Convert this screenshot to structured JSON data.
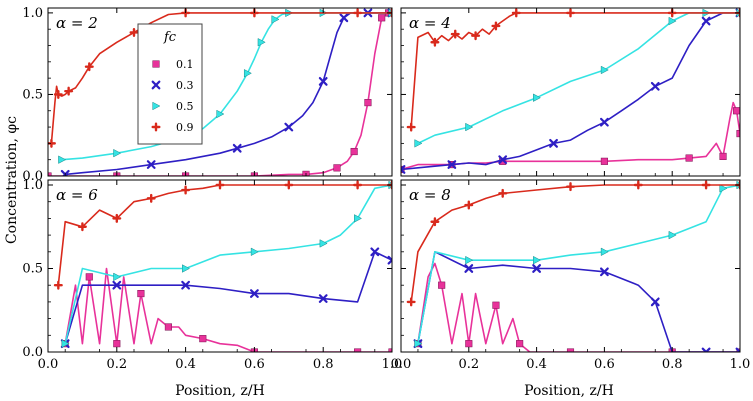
{
  "chart_data": {
    "type": "line",
    "figure": {
      "ylabel": "Concentration, φc",
      "xlabel": "Position, z/H",
      "x_ticks": [
        "0.0",
        "0.2",
        "0.4",
        "0.6",
        "0.8",
        "1.0"
      ],
      "y_ticks": [
        "0.0",
        "0.5",
        "1.0"
      ],
      "xlim": [
        0,
        1
      ],
      "ylim": [
        0,
        1.03
      ],
      "legend": {
        "title": "fc",
        "placement": "upper-left of top-left panel",
        "entries": [
          "0.1",
          "0.3",
          "0.5",
          "0.9"
        ]
      }
    },
    "series_styles": [
      {
        "key": "0.1",
        "color": "#e8329a",
        "marker": "square"
      },
      {
        "key": "0.3",
        "color": "#2e1fc4",
        "marker": "x"
      },
      {
        "key": "0.5",
        "color": "#35e3e3",
        "marker": "triangle-right"
      },
      {
        "key": "0.9",
        "color": "#d92a1c",
        "marker": "plus"
      }
    ],
    "panels": [
      {
        "label": "α = 2",
        "series": [
          {
            "key": "0.1",
            "x": [
              0.0,
              0.1,
              0.2,
              0.3,
              0.4,
              0.5,
              0.6,
              0.7,
              0.75,
              0.8,
              0.84,
              0.87,
              0.89,
              0.91,
              0.93,
              0.95,
              0.97,
              0.99
            ],
            "y": [
              0.0,
              0.0,
              0.0,
              0.0,
              0.0,
              0.0,
              0.0,
              0.01,
              0.01,
              0.02,
              0.05,
              0.09,
              0.15,
              0.25,
              0.45,
              0.75,
              0.97,
              1.0
            ]
          },
          {
            "key": "0.3",
            "x": [
              0.05,
              0.1,
              0.2,
              0.3,
              0.4,
              0.5,
              0.55,
              0.6,
              0.65,
              0.7,
              0.74,
              0.77,
              0.8,
              0.82,
              0.84,
              0.86,
              0.88,
              0.9,
              0.93,
              0.97,
              1.0
            ],
            "y": [
              0.01,
              0.02,
              0.04,
              0.07,
              0.1,
              0.14,
              0.17,
              0.2,
              0.24,
              0.3,
              0.37,
              0.45,
              0.58,
              0.73,
              0.88,
              0.97,
              1.0,
              1.0,
              1.0,
              1.0,
              1.0
            ]
          },
          {
            "key": "0.5",
            "x": [
              0.04,
              0.1,
              0.2,
              0.3,
              0.4,
              0.45,
              0.5,
              0.55,
              0.58,
              0.6,
              0.62,
              0.64,
              0.66,
              0.68,
              0.7,
              0.75,
              0.8,
              0.9,
              1.0
            ],
            "y": [
              0.1,
              0.11,
              0.14,
              0.18,
              0.24,
              0.29,
              0.38,
              0.52,
              0.63,
              0.72,
              0.82,
              0.9,
              0.96,
              0.99,
              1.0,
              1.0,
              1.0,
              1.0,
              1.0
            ]
          },
          {
            "key": "0.9",
            "x": [
              0.01,
              0.02,
              0.025,
              0.03,
              0.04,
              0.05,
              0.06,
              0.08,
              0.1,
              0.12,
              0.15,
              0.2,
              0.25,
              0.3,
              0.35,
              0.4,
              0.45,
              0.5,
              0.6,
              0.7,
              0.8,
              0.9,
              1.0
            ],
            "y": [
              0.2,
              0.45,
              0.55,
              0.5,
              0.49,
              0.5,
              0.52,
              0.54,
              0.6,
              0.67,
              0.75,
              0.82,
              0.88,
              0.94,
              0.99,
              1.0,
              1.0,
              1.0,
              1.0,
              1.0,
              1.0,
              1.0,
              1.0
            ]
          }
        ]
      },
      {
        "label": "α = 4",
        "series": [
          {
            "key": "0.1",
            "x": [
              0.0,
              0.05,
              0.1,
              0.15,
              0.2,
              0.25,
              0.3,
              0.4,
              0.5,
              0.6,
              0.7,
              0.8,
              0.85,
              0.9,
              0.93,
              0.95,
              0.97,
              0.98,
              0.99,
              1.0
            ],
            "y": [
              0.04,
              0.07,
              0.07,
              0.07,
              0.08,
              0.08,
              0.09,
              0.09,
              0.09,
              0.09,
              0.1,
              0.1,
              0.11,
              0.12,
              0.2,
              0.12,
              0.35,
              0.45,
              0.4,
              0.26
            ]
          },
          {
            "key": "0.3",
            "x": [
              0.0,
              0.05,
              0.1,
              0.15,
              0.2,
              0.25,
              0.3,
              0.35,
              0.4,
              0.45,
              0.5,
              0.55,
              0.6,
              0.65,
              0.7,
              0.75,
              0.8,
              0.85,
              0.9,
              0.95,
              1.0
            ],
            "y": [
              0.04,
              0.05,
              0.06,
              0.07,
              0.08,
              0.07,
              0.1,
              0.12,
              0.16,
              0.2,
              0.22,
              0.28,
              0.33,
              0.4,
              0.47,
              0.55,
              0.6,
              0.8,
              0.95,
              1.0,
              1.0
            ]
          },
          {
            "key": "0.5",
            "x": [
              0.05,
              0.1,
              0.2,
              0.3,
              0.4,
              0.5,
              0.6,
              0.7,
              0.8,
              0.85,
              0.9,
              0.95,
              1.0
            ],
            "y": [
              0.2,
              0.25,
              0.3,
              0.4,
              0.48,
              0.58,
              0.65,
              0.78,
              0.95,
              1.0,
              1.0,
              1.0,
              1.0
            ]
          },
          {
            "key": "0.9",
            "x": [
              0.03,
              0.05,
              0.08,
              0.1,
              0.12,
              0.14,
              0.16,
              0.18,
              0.2,
              0.22,
              0.24,
              0.26,
              0.28,
              0.3,
              0.32,
              0.34,
              0.36,
              0.4,
              0.5,
              0.6,
              0.7,
              0.8,
              0.9,
              1.0
            ],
            "y": [
              0.3,
              0.85,
              0.88,
              0.82,
              0.86,
              0.83,
              0.87,
              0.84,
              0.88,
              0.86,
              0.9,
              0.87,
              0.92,
              0.95,
              0.98,
              1.0,
              1.0,
              1.0,
              1.0,
              1.0,
              1.0,
              1.0,
              1.0,
              1.0
            ]
          }
        ]
      },
      {
        "label": "α = 6",
        "series": [
          {
            "key": "0.1",
            "x": [
              0.05,
              0.08,
              0.1,
              0.12,
              0.15,
              0.17,
              0.2,
              0.22,
              0.25,
              0.27,
              0.3,
              0.32,
              0.35,
              0.38,
              0.4,
              0.45,
              0.5,
              0.55,
              0.6,
              0.7,
              0.8,
              0.9,
              1.0
            ],
            "y": [
              0.05,
              0.4,
              0.05,
              0.45,
              0.05,
              0.5,
              0.05,
              0.45,
              0.05,
              0.35,
              0.05,
              0.2,
              0.15,
              0.15,
              0.1,
              0.08,
              0.05,
              0.04,
              0.0,
              0.0,
              0.0,
              0.0,
              0.0
            ]
          },
          {
            "key": "0.3",
            "x": [
              0.05,
              0.1,
              0.2,
              0.3,
              0.4,
              0.5,
              0.6,
              0.7,
              0.8,
              0.9,
              0.95,
              1.0
            ],
            "y": [
              0.05,
              0.4,
              0.4,
              0.4,
              0.4,
              0.38,
              0.35,
              0.35,
              0.32,
              0.3,
              0.6,
              0.55
            ]
          },
          {
            "key": "0.5",
            "x": [
              0.05,
              0.1,
              0.2,
              0.3,
              0.4,
              0.5,
              0.6,
              0.7,
              0.8,
              0.85,
              0.9,
              0.95,
              1.0
            ],
            "y": [
              0.05,
              0.5,
              0.45,
              0.5,
              0.5,
              0.58,
              0.6,
              0.62,
              0.65,
              0.7,
              0.8,
              0.98,
              1.0
            ]
          },
          {
            "key": "0.9",
            "x": [
              0.03,
              0.05,
              0.1,
              0.15,
              0.2,
              0.25,
              0.3,
              0.35,
              0.4,
              0.45,
              0.5,
              0.6,
              0.7,
              0.8,
              0.9,
              1.0
            ],
            "y": [
              0.4,
              0.78,
              0.75,
              0.85,
              0.8,
              0.9,
              0.92,
              0.95,
              0.97,
              0.98,
              1.0,
              1.0,
              1.0,
              1.0,
              1.0,
              1.0
            ]
          }
        ]
      },
      {
        "label": "α = 8",
        "series": [
          {
            "key": "0.1",
            "x": [
              0.05,
              0.08,
              0.1,
              0.12,
              0.15,
              0.18,
              0.2,
              0.22,
              0.25,
              0.28,
              0.3,
              0.33,
              0.35,
              0.38,
              0.4,
              0.5,
              0.6,
              0.7,
              0.8,
              0.9,
              1.0
            ],
            "y": [
              0.05,
              0.45,
              0.53,
              0.4,
              0.05,
              0.35,
              0.05,
              0.35,
              0.05,
              0.28,
              0.05,
              0.2,
              0.05,
              0.0,
              0.0,
              0.0,
              0.0,
              0.0,
              0.0,
              0.0,
              0.0
            ]
          },
          {
            "key": "0.3",
            "x": [
              0.05,
              0.1,
              0.2,
              0.3,
              0.4,
              0.5,
              0.6,
              0.7,
              0.75,
              0.8,
              0.9,
              1.0
            ],
            "y": [
              0.05,
              0.6,
              0.5,
              0.52,
              0.5,
              0.5,
              0.48,
              0.4,
              0.3,
              0.0,
              0.0,
              0.0
            ]
          },
          {
            "key": "0.5",
            "x": [
              0.05,
              0.1,
              0.2,
              0.3,
              0.4,
              0.5,
              0.6,
              0.7,
              0.8,
              0.9,
              0.95,
              1.0
            ],
            "y": [
              0.05,
              0.6,
              0.55,
              0.55,
              0.55,
              0.58,
              0.6,
              0.65,
              0.7,
              0.78,
              0.98,
              1.0
            ]
          },
          {
            "key": "0.9",
            "x": [
              0.03,
              0.05,
              0.1,
              0.15,
              0.2,
              0.25,
              0.3,
              0.4,
              0.5,
              0.6,
              0.7,
              0.8,
              0.9,
              1.0
            ],
            "y": [
              0.3,
              0.6,
              0.78,
              0.85,
              0.88,
              0.92,
              0.95,
              0.97,
              0.99,
              1.0,
              1.0,
              1.0,
              1.0,
              1.0
            ]
          }
        ]
      }
    ]
  }
}
